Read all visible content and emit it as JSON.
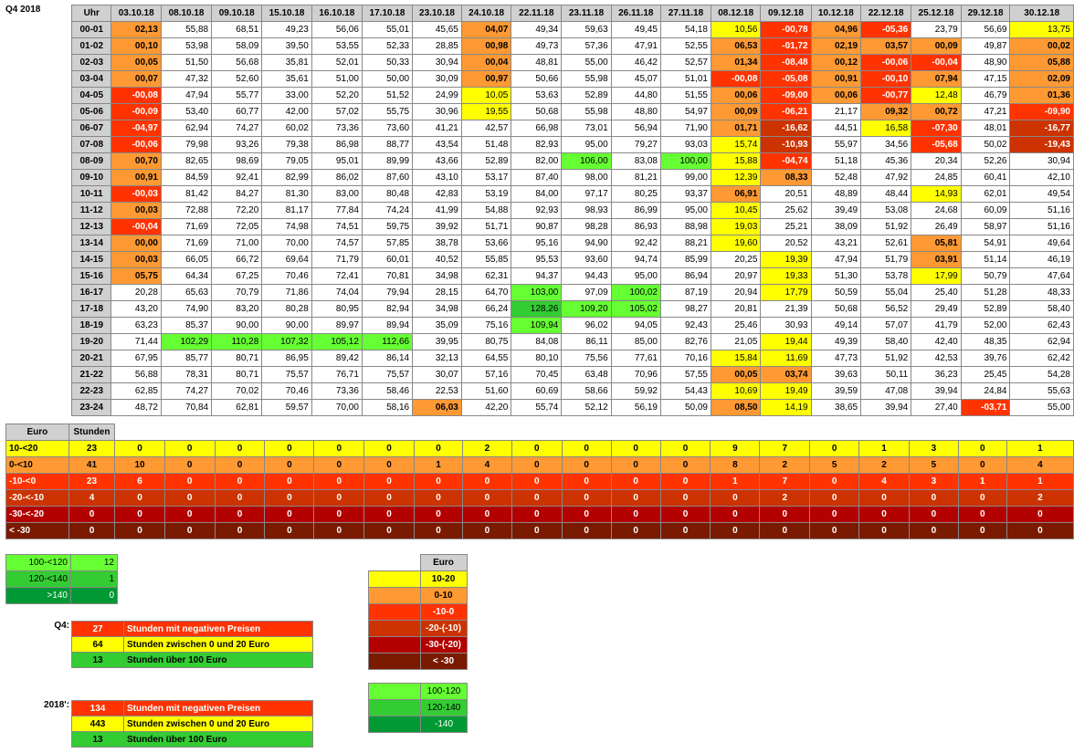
{
  "title": "Q4 2018",
  "hour_header": "Uhr",
  "dates": [
    "03.10.18",
    "08.10.18",
    "09.10.18",
    "15.10.18",
    "16.10.18",
    "17.10.18",
    "23.10.18",
    "24.10.18",
    "22.11.18",
    "23.11.18",
    "26.11.18",
    "27.11.18",
    "08.12.18",
    "09.12.18",
    "10.12.18",
    "22.12.18",
    "25.12.18",
    "29.12.18",
    "30.12.18"
  ],
  "rows": [
    {
      "hour": "00-01",
      "v": [
        "02,13",
        "55,88",
        "68,51",
        "49,23",
        "56,06",
        "55,01",
        "45,65",
        "04,07",
        "49,34",
        "59,63",
        "49,45",
        "54,18",
        "10,56",
        "-00,78",
        "04,96",
        "-05,36",
        "23,79",
        "56,69",
        "13,75"
      ]
    },
    {
      "hour": "01-02",
      "v": [
        "00,10",
        "53,98",
        "58,09",
        "39,50",
        "53,55",
        "52,33",
        "28,85",
        "00,98",
        "49,73",
        "57,36",
        "47,91",
        "52,55",
        "06,53",
        "-01,72",
        "02,19",
        "03,57",
        "00,09",
        "49,87",
        "00,02"
      ]
    },
    {
      "hour": "02-03",
      "v": [
        "00,05",
        "51,50",
        "56,68",
        "35,81",
        "52,01",
        "50,33",
        "30,94",
        "00,04",
        "48,81",
        "55,00",
        "46,42",
        "52,57",
        "01,34",
        "-08,48",
        "00,12",
        "-00,06",
        "-00,04",
        "48,90",
        "05,88"
      ]
    },
    {
      "hour": "03-04",
      "v": [
        "00,07",
        "47,32",
        "52,60",
        "35,61",
        "51,00",
        "50,00",
        "30,09",
        "00,97",
        "50,66",
        "55,98",
        "45,07",
        "51,01",
        "-00,08",
        "-05,08",
        "00,91",
        "-00,10",
        "07,94",
        "47,15",
        "02,09"
      ]
    },
    {
      "hour": "04-05",
      "v": [
        "-00,08",
        "47,94",
        "55,77",
        "33,00",
        "52,20",
        "51,52",
        "24,99",
        "10,05",
        "53,63",
        "52,89",
        "44,80",
        "51,55",
        "00,06",
        "-09,00",
        "00,06",
        "-00,77",
        "12,48",
        "46,79",
        "01,36"
      ]
    },
    {
      "hour": "05-06",
      "v": [
        "-00,09",
        "53,40",
        "60,77",
        "42,00",
        "57,02",
        "55,75",
        "30,96",
        "19,55",
        "50,68",
        "55,98",
        "48,80",
        "54,97",
        "00,09",
        "-06,21",
        "21,17",
        "09,32",
        "00,72",
        "47,21",
        "-09,90"
      ]
    },
    {
      "hour": "06-07",
      "v": [
        "-04,97",
        "62,94",
        "74,27",
        "60,02",
        "73,36",
        "73,60",
        "41,21",
        "42,57",
        "66,98",
        "73,01",
        "56,94",
        "71,90",
        "01,71",
        "-16,62",
        "44,51",
        "16,58",
        "-07,30",
        "48,01",
        "-16,77"
      ]
    },
    {
      "hour": "07-08",
      "v": [
        "-00,06",
        "79,98",
        "93,26",
        "79,38",
        "86,98",
        "88,77",
        "43,54",
        "51,48",
        "82,93",
        "95,00",
        "79,27",
        "93,03",
        "15,74",
        "-10,93",
        "55,97",
        "34,56",
        "-05,68",
        "50,02",
        "-19,43"
      ]
    },
    {
      "hour": "08-09",
      "v": [
        "00,70",
        "82,65",
        "98,69",
        "79,05",
        "95,01",
        "89,99",
        "43,66",
        "52,89",
        "82,00",
        "106,00",
        "83,08",
        "100,00",
        "15,88",
        "-04,74",
        "51,18",
        "45,36",
        "20,34",
        "52,26",
        "30,94"
      ]
    },
    {
      "hour": "09-10",
      "v": [
        "00,91",
        "84,59",
        "92,41",
        "82,99",
        "86,02",
        "87,60",
        "43,10",
        "53,17",
        "87,40",
        "98,00",
        "81,21",
        "99,00",
        "12,39",
        "08,33",
        "52,48",
        "47,92",
        "24,85",
        "60,41",
        "42,10"
      ]
    },
    {
      "hour": "10-11",
      "v": [
        "-00,03",
        "81,42",
        "84,27",
        "81,30",
        "83,00",
        "80,48",
        "42,83",
        "53,19",
        "84,00",
        "97,17",
        "80,25",
        "93,37",
        "06,91",
        "20,51",
        "48,89",
        "48,44",
        "14,93",
        "62,01",
        "49,54"
      ]
    },
    {
      "hour": "11-12",
      "v": [
        "00,03",
        "72,88",
        "72,20",
        "81,17",
        "77,84",
        "74,24",
        "41,99",
        "54,88",
        "92,93",
        "98,93",
        "86,99",
        "95,00",
        "10,45",
        "25,62",
        "39,49",
        "53,08",
        "24,68",
        "60,09",
        "51,16"
      ]
    },
    {
      "hour": "12-13",
      "v": [
        "-00,04",
        "71,69",
        "72,05",
        "74,98",
        "74,51",
        "59,75",
        "39,92",
        "51,71",
        "90,87",
        "98,28",
        "86,93",
        "88,98",
        "19,03",
        "25,21",
        "38,09",
        "51,92",
        "26,49",
        "58,97",
        "51,16"
      ]
    },
    {
      "hour": "13-14",
      "v": [
        "00,00",
        "71,69",
        "71,00",
        "70,00",
        "74,57",
        "57,85",
        "38,78",
        "53,66",
        "95,16",
        "94,90",
        "92,42",
        "88,21",
        "19,60",
        "20,52",
        "43,21",
        "52,61",
        "05,81",
        "54,91",
        "49,64"
      ]
    },
    {
      "hour": "14-15",
      "v": [
        "00,03",
        "66,05",
        "66,72",
        "69,64",
        "71,79",
        "60,01",
        "40,52",
        "55,85",
        "95,53",
        "93,60",
        "94,74",
        "85,99",
        "20,25",
        "19,39",
        "47,94",
        "51,79",
        "03,91",
        "51,14",
        "46,19"
      ]
    },
    {
      "hour": "15-16",
      "v": [
        "05,75",
        "64,34",
        "67,25",
        "70,46",
        "72,41",
        "70,81",
        "34,98",
        "62,31",
        "94,37",
        "94,43",
        "95,00",
        "86,94",
        "20,97",
        "19,33",
        "51,30",
        "53,78",
        "17,99",
        "50,79",
        "47,64"
      ]
    },
    {
      "hour": "16-17",
      "v": [
        "20,28",
        "65,63",
        "70,79",
        "71,86",
        "74,04",
        "79,94",
        "28,15",
        "64,70",
        "103,00",
        "97,09",
        "100,02",
        "87,19",
        "20,94",
        "17,79",
        "50,59",
        "55,04",
        "25,40",
        "51,28",
        "48,33"
      ]
    },
    {
      "hour": "17-18",
      "v": [
        "43,20",
        "74,90",
        "83,20",
        "80,28",
        "80,95",
        "82,94",
        "34,98",
        "66,24",
        "128,26",
        "109,20",
        "105,02",
        "98,27",
        "20,81",
        "21,39",
        "50,68",
        "56,52",
        "29,49",
        "52,89",
        "58,40"
      ]
    },
    {
      "hour": "18-19",
      "v": [
        "63,23",
        "85,37",
        "90,00",
        "90,00",
        "89,97",
        "89,94",
        "35,09",
        "75,16",
        "109,94",
        "96,02",
        "94,05",
        "92,43",
        "25,46",
        "30,93",
        "49,14",
        "57,07",
        "41,79",
        "52,00",
        "62,43"
      ]
    },
    {
      "hour": "19-20",
      "v": [
        "71,44",
        "102,29",
        "110,28",
        "107,32",
        "105,12",
        "112,66",
        "39,95",
        "80,75",
        "84,08",
        "86,11",
        "85,00",
        "82,76",
        "21,05",
        "19,44",
        "49,39",
        "58,40",
        "42,40",
        "48,35",
        "62,94"
      ]
    },
    {
      "hour": "20-21",
      "v": [
        "67,95",
        "85,77",
        "80,71",
        "86,95",
        "89,42",
        "86,14",
        "32,13",
        "64,55",
        "80,10",
        "75,56",
        "77,61",
        "70,16",
        "15,84",
        "11,69",
        "47,73",
        "51,92",
        "42,53",
        "39,76",
        "62,42"
      ]
    },
    {
      "hour": "21-22",
      "v": [
        "56,88",
        "78,31",
        "80,71",
        "75,57",
        "76,71",
        "75,57",
        "30,07",
        "57,16",
        "70,45",
        "63,48",
        "70,96",
        "57,55",
        "00,05",
        "03,74",
        "39,63",
        "50,11",
        "36,23",
        "25,45",
        "54,28"
      ]
    },
    {
      "hour": "22-23",
      "v": [
        "62,85",
        "74,27",
        "70,02",
        "70,46",
        "73,36",
        "58,46",
        "22,53",
        "51,60",
        "60,69",
        "58,66",
        "59,92",
        "54,43",
        "10,69",
        "19,49",
        "39,59",
        "47,08",
        "39,94",
        "24,84",
        "55,63"
      ]
    },
    {
      "hour": "23-24",
      "v": [
        "48,72",
        "70,84",
        "62,81",
        "59,57",
        "70,00",
        "58,16",
        "06,03",
        "42,20",
        "55,74",
        "52,12",
        "56,19",
        "50,09",
        "08,50",
        "14,19",
        "38,65",
        "39,94",
        "27,40",
        "-03,71",
        "55,00"
      ]
    }
  ],
  "counts": {
    "euro_header": "Euro",
    "hours_header": "Stunden",
    "rows": [
      {
        "label": "10-<20",
        "total": "23",
        "v": [
          "0",
          "0",
          "0",
          "0",
          "0",
          "0",
          "0",
          "2",
          "0",
          "0",
          "0",
          "0",
          "9",
          "7",
          "0",
          "1",
          "3",
          "0",
          "1"
        ]
      },
      {
        "label": "0-<10",
        "total": "41",
        "v": [
          "10",
          "0",
          "0",
          "0",
          "0",
          "0",
          "1",
          "4",
          "0",
          "0",
          "0",
          "0",
          "8",
          "2",
          "5",
          "2",
          "5",
          "0",
          "4"
        ]
      },
      {
        "label": "-10-<0",
        "total": "23",
        "v": [
          "6",
          "0",
          "0",
          "0",
          "0",
          "0",
          "0",
          "0",
          "0",
          "0",
          "0",
          "0",
          "1",
          "7",
          "0",
          "4",
          "3",
          "1",
          "1"
        ]
      },
      {
        "label": "-20-<-10",
        "total": "4",
        "v": [
          "0",
          "0",
          "0",
          "0",
          "0",
          "0",
          "0",
          "0",
          "0",
          "0",
          "0",
          "0",
          "0",
          "2",
          "0",
          "0",
          "0",
          "0",
          "2"
        ]
      },
      {
        "label": "-30-<-20",
        "total": "0",
        "v": [
          "0",
          "0",
          "0",
          "0",
          "0",
          "0",
          "0",
          "0",
          "0",
          "0",
          "0",
          "0",
          "0",
          "0",
          "0",
          "0",
          "0",
          "0",
          "0"
        ]
      },
      {
        "label": "< -30",
        "total": "0",
        "v": [
          "0",
          "0",
          "0",
          "0",
          "0",
          "0",
          "0",
          "0",
          "0",
          "0",
          "0",
          "0",
          "0",
          "0",
          "0",
          "0",
          "0",
          "0",
          "0"
        ]
      }
    ]
  },
  "high_counts": [
    {
      "label": "100-<120",
      "value": "12"
    },
    {
      "label": "120-<140",
      "value": "1"
    },
    {
      "label": ">140",
      "value": "0"
    }
  ],
  "legend": {
    "header": "Euro",
    "ranges": [
      "10-20",
      "0-10",
      "-10-0",
      "-20-(-10)",
      "-30-(-20)",
      "< -30"
    ],
    "high_ranges": [
      "100-120",
      "120-140",
      "-140"
    ]
  },
  "summary_q4": {
    "label": "Q4:",
    "items": [
      {
        "count": "27",
        "text": "Stunden mit negativen Preisen"
      },
      {
        "count": "64",
        "text": "Stunden zwischen 0 und 20 Euro"
      },
      {
        "count": "13",
        "text": "Stunden über 100 Euro"
      }
    ]
  },
  "summary_year": {
    "label": "2018':",
    "items": [
      {
        "count": "134",
        "text": "Stunden mit negativen Preisen"
      },
      {
        "count": "443",
        "text": "Stunden zwischen 0 und 20 Euro"
      },
      {
        "count": "13",
        "text": "Stunden über 100 Euro"
      }
    ]
  },
  "colors": {
    "yellow": "#ffff00",
    "orange": "#ff9933",
    "red": "#ff3300",
    "dark_red": "#cc3300",
    "deep_red": "#b30000",
    "brown": "#7a1a00",
    "light_green": "#66ff33",
    "green": "#33cc33",
    "dark_green": "#009933"
  }
}
